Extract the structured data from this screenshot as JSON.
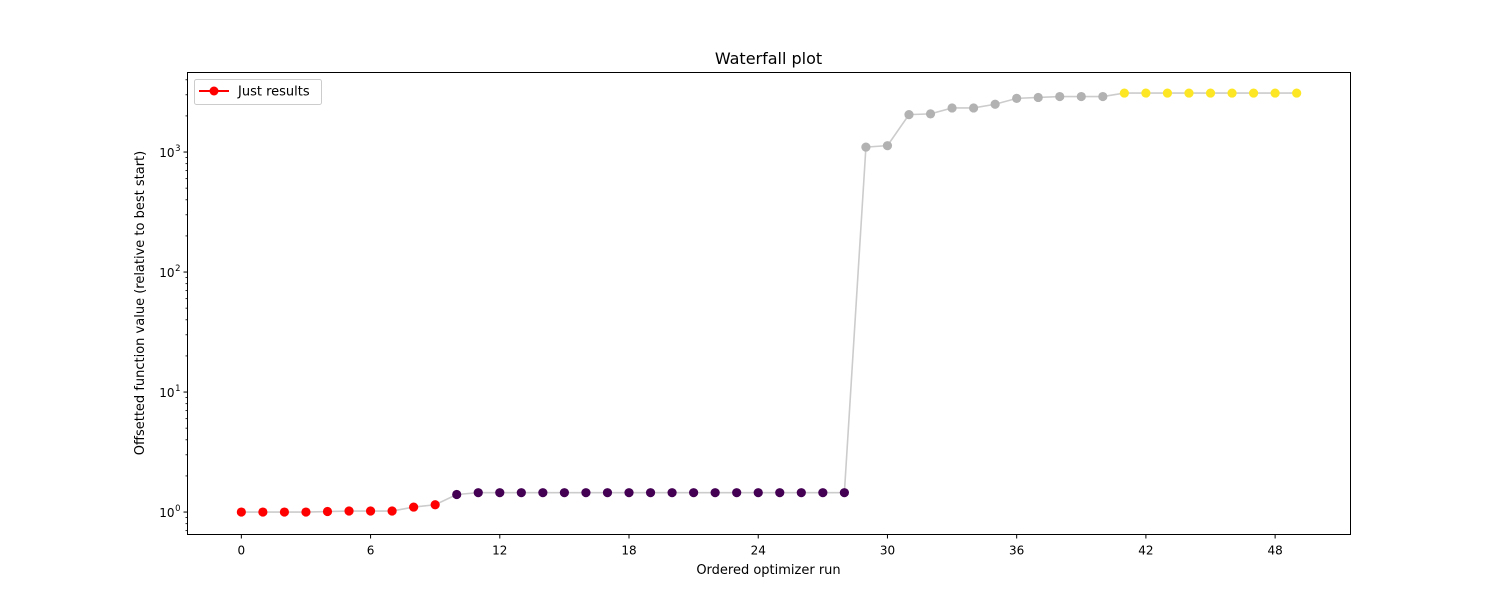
{
  "chart_data": {
    "type": "line",
    "title": "Waterfall plot",
    "xlabel": "Ordered optimizer run",
    "ylabel": "Offsetted function value (relative to best start)",
    "yscale": "log",
    "xlim": [
      -2.5,
      51.5
    ],
    "ylim": [
      0.65,
      4600
    ],
    "xticks": [
      0,
      6,
      12,
      18,
      24,
      30,
      36,
      42,
      48
    ],
    "yticks": [
      1,
      10,
      100,
      1000
    ],
    "ytick_labels": [
      {
        "base": "10",
        "exp": "0"
      },
      {
        "base": "10",
        "exp": "1"
      },
      {
        "base": "10",
        "exp": "2"
      },
      {
        "base": "10",
        "exp": "3"
      }
    ],
    "legend": {
      "position": "top-left",
      "label": "Just results",
      "color": "#ff0000"
    },
    "line_color": "#cccccc",
    "x": [
      0,
      1,
      2,
      3,
      4,
      5,
      6,
      7,
      8,
      9,
      10,
      11,
      12,
      13,
      14,
      15,
      16,
      17,
      18,
      19,
      20,
      21,
      22,
      23,
      24,
      25,
      26,
      27,
      28,
      29,
      30,
      31,
      32,
      33,
      34,
      35,
      36,
      37,
      38,
      39,
      40,
      41,
      42,
      43,
      44,
      45,
      46,
      47,
      48,
      49
    ],
    "y": [
      1.0,
      1.0,
      1.0,
      1.0,
      1.01,
      1.02,
      1.02,
      1.02,
      1.1,
      1.15,
      1.4,
      1.45,
      1.45,
      1.45,
      1.45,
      1.45,
      1.45,
      1.45,
      1.45,
      1.45,
      1.45,
      1.45,
      1.45,
      1.45,
      1.45,
      1.45,
      1.45,
      1.45,
      1.45,
      1100,
      1130,
      2050,
      2080,
      2330,
      2330,
      2500,
      2800,
      2850,
      2900,
      2900,
      2900,
      3100,
      3100,
      3100,
      3100,
      3100,
      3100,
      3100,
      3100,
      3100
    ],
    "point_colors": [
      "#ff0000",
      "#ff0000",
      "#ff0000",
      "#ff0000",
      "#ff0000",
      "#ff0000",
      "#ff0000",
      "#ff0000",
      "#ff0000",
      "#ff0000",
      "#440154",
      "#440154",
      "#440154",
      "#440154",
      "#440154",
      "#440154",
      "#440154",
      "#440154",
      "#440154",
      "#440154",
      "#440154",
      "#440154",
      "#440154",
      "#440154",
      "#440154",
      "#440154",
      "#440154",
      "#440154",
      "#440154",
      "#b2b2b2",
      "#b2b2b2",
      "#b2b2b2",
      "#b2b2b2",
      "#b2b2b2",
      "#b2b2b2",
      "#b2b2b2",
      "#b2b2b2",
      "#b2b2b2",
      "#b2b2b2",
      "#b2b2b2",
      "#b2b2b2",
      "#fde725",
      "#fde725",
      "#fde725",
      "#fde725",
      "#fde725",
      "#fde725",
      "#fde725",
      "#fde725",
      "#fde725"
    ]
  }
}
